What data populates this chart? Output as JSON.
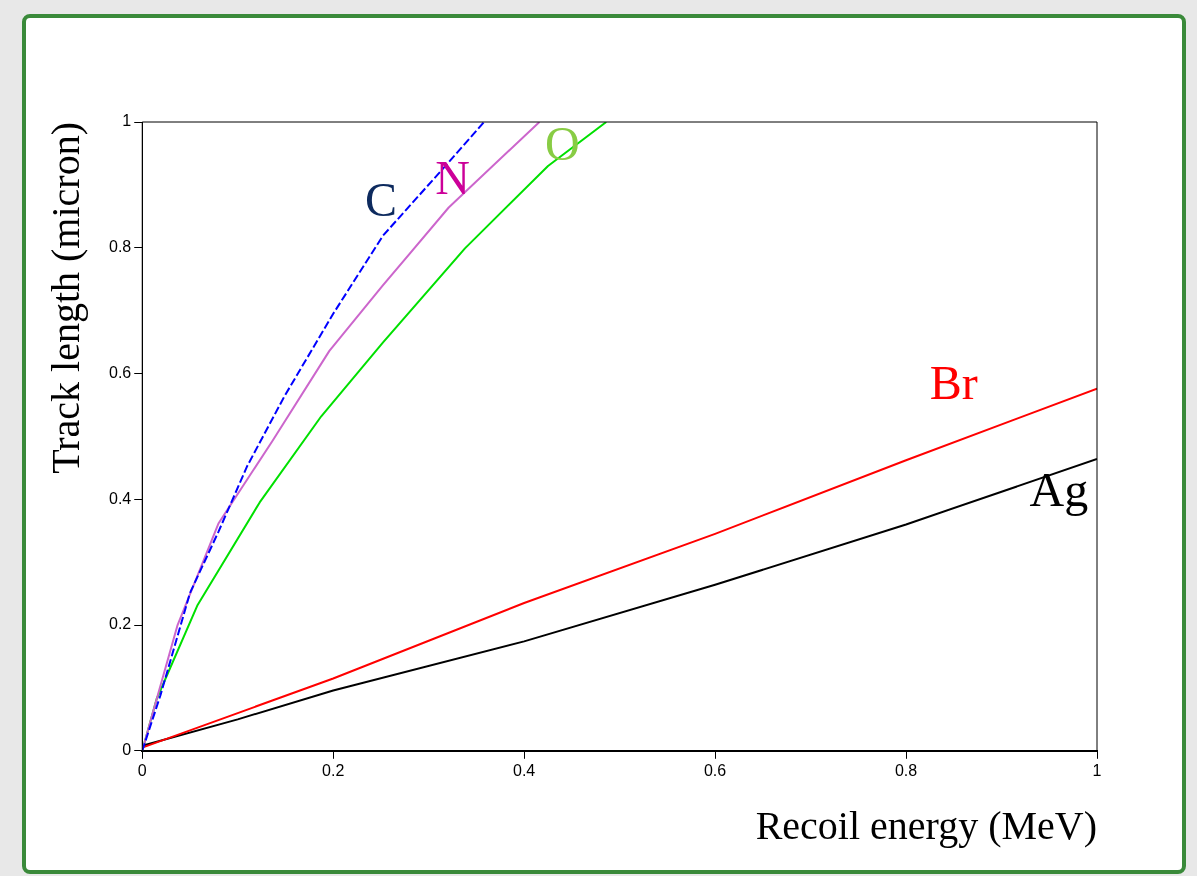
{
  "chart_data": {
    "type": "line",
    "xlabel": "Recoil energy (MeV)",
    "ylabel": "Track length (micron)",
    "xlim": [
      0,
      1
    ],
    "xticks": [
      0,
      0.2,
      0.4,
      0.6,
      0.8,
      1
    ],
    "ylim": [
      0,
      1
    ],
    "yticks": [
      0,
      0.2,
      0.4,
      0.6,
      0.8,
      1
    ],
    "grid": false,
    "legend": false,
    "marker": "none",
    "series": [
      {
        "name": "C",
        "color": "#0000ff",
        "line_style": "dashed",
        "x": [
          0,
          0.019,
          0.05,
          0.08,
          0.11,
          0.149,
          0.2,
          0.252,
          0.321,
          0.358
        ],
        "values": [
          0,
          0.088,
          0.251,
          0.349,
          0.453,
          0.564,
          0.695,
          0.819,
          0.936,
          1.0
        ]
      },
      {
        "name": "N",
        "color": "#cc66cc",
        "x": [
          0,
          0.011,
          0.037,
          0.08,
          0.136,
          0.196,
          0.252,
          0.321,
          0.416
        ],
        "values": [
          0,
          0.06,
          0.2,
          0.362,
          0.492,
          0.636,
          0.74,
          0.864,
          1.0
        ]
      },
      {
        "name": "O",
        "color": "#00e000",
        "x": [
          0,
          0.015,
          0.058,
          0.123,
          0.1875,
          0.252,
          0.338,
          0.425,
          0.486
        ],
        "values": [
          0,
          0.082,
          0.232,
          0.395,
          0.532,
          0.649,
          0.799,
          0.93,
          1.0
        ]
      },
      {
        "name": "Br",
        "color": "#ff0000",
        "x": [
          0,
          0.1,
          0.2,
          0.4,
          0.6,
          0.8,
          1
        ],
        "values": [
          0.005,
          0.06,
          0.115,
          0.235,
          0.345,
          0.462,
          0.576
        ]
      },
      {
        "name": "Ag",
        "color": "#000000",
        "x": [
          0,
          0.1,
          0.2,
          0.4,
          0.6,
          0.8,
          1
        ],
        "values": [
          0.008,
          0.05,
          0.096,
          0.174,
          0.264,
          0.36,
          0.464
        ]
      }
    ]
  }
}
